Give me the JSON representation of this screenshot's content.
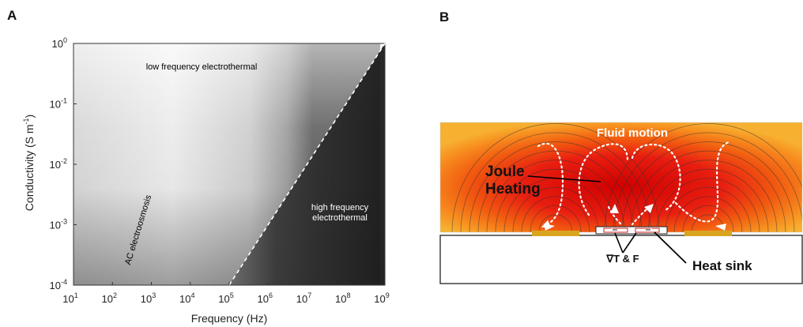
{
  "panels": {
    "a": {
      "label": "A"
    },
    "b": {
      "label": "B"
    }
  },
  "chart_data": {
    "type": "heatmap",
    "title": "",
    "xlabel": "Frequency (Hz)",
    "ylabel": "Conductivity (S m",
    "ylabel_sup": "-1",
    "ylabel_end": ")",
    "x_scale": "log",
    "y_scale": "log",
    "xlim": [
      10,
      1000000000
    ],
    "ylim": [
      0.0001,
      1
    ],
    "x_tick_base": "10",
    "x_tick_exponents": [
      "1",
      "2",
      "3",
      "4",
      "5",
      "6",
      "7",
      "8",
      "9"
    ],
    "y_tick_base": "10",
    "y_tick_exponents": [
      "0",
      "-1",
      "-2",
      "-3",
      "-4"
    ],
    "colormap": "grayscale (light = low, dark = high)",
    "boundary_line": {
      "style": "dashed",
      "color": "#ffffff",
      "points": [
        [
          100000,
          0.0001
        ],
        [
          1000000000,
          1
        ]
      ]
    },
    "regions": [
      {
        "label": "low frequency electrothermal",
        "color": "#222222"
      },
      {
        "label": "AC electroosmosis",
        "color": "#222222"
      },
      {
        "label": "high frequency",
        "color": "#ffffff"
      },
      {
        "label": "electrothermal",
        "color": "#ffffff"
      }
    ]
  },
  "diagram_b": {
    "labels": {
      "fluid_motion": "Fluid motion",
      "joule": "Joule",
      "heating": "Heating",
      "grad_t_f": "∇T & F",
      "heat_sink": "Heat sink"
    },
    "colors": {
      "electrode": "#d9a520",
      "field_lines": "#333333",
      "fluid_arrows": "#ffffff"
    }
  }
}
